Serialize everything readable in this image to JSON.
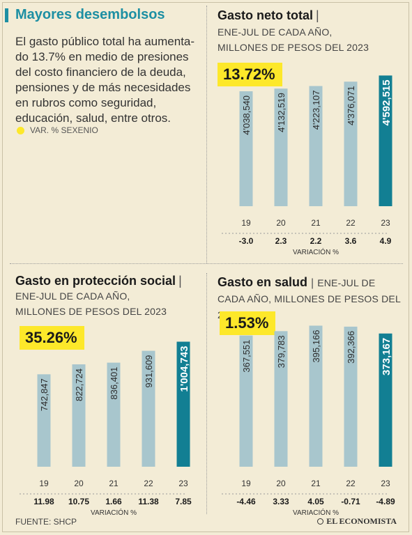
{
  "header": {
    "title": "Mayores desembolsos",
    "intro": "El gasto público total ha aumenta-do 13.7% en medio de presiones del costo financiero de la deuda, pensiones y de más necesidades en rubros como seguridad, educación, salud, entre otros.",
    "legend_label": "VAR. % SEXENIO"
  },
  "colors": {
    "regular_bar": "#a8c6cd",
    "highlight_bar": "#127f93",
    "badge": "#fde82a",
    "accent": "#1d8fa3"
  },
  "footer": {
    "source": "FUENTE: SHCP",
    "brand": "EL ECONOMISTA"
  },
  "chart_data": [
    {
      "type": "bar",
      "title": "Gasto neto total",
      "subtitle": "ENE-JUL DE CADA AÑO, MILLONES DE PESOS DEL 2023",
      "badge": "13.72%",
      "categories": [
        "19",
        "20",
        "21",
        "22",
        "23"
      ],
      "values": [
        4038540,
        4132519,
        4223107,
        4376071,
        4592515
      ],
      "value_labels": [
        "4'038,540",
        "4'132,519",
        "4'223,107",
        "4'376,071",
        "4'592,515"
      ],
      "variation": [
        "-3.0",
        "2.3",
        "2.2",
        "3.6",
        "4.9"
      ],
      "variation_label": "VARIACIÓN %",
      "highlight_index": 4,
      "ylim": [
        0,
        4700000
      ]
    },
    {
      "type": "bar",
      "title": "Gasto en protección social",
      "subtitle": "ENE-JUL DE CADA AÑO, MILLONES DE PESOS DEL 2023",
      "badge": "35.26%",
      "categories": [
        "19",
        "20",
        "21",
        "22",
        "23"
      ],
      "values": [
        742847,
        822724,
        836401,
        931609,
        1004743
      ],
      "value_labels": [
        "742,847",
        "822,724",
        "836,401",
        "931,609",
        "1'004,743"
      ],
      "variation": [
        "11.98",
        "10.75",
        "1.66",
        "11.38",
        "7.85"
      ],
      "variation_label": "VARIACIÓN %",
      "highlight_index": 4,
      "ylim": [
        0,
        1030000
      ]
    },
    {
      "type": "bar",
      "title": "Gasto en salud",
      "subtitle": "ENE-JUL DE CADA AÑO, MILLONES DE PESOS DEL 2023",
      "badge": "1.53%",
      "categories": [
        "19",
        "20",
        "21",
        "22",
        "23"
      ],
      "values": [
        367551,
        379783,
        395166,
        392366,
        373167
      ],
      "value_labels": [
        "367,551",
        "379,783",
        "395,166",
        "392,366",
        "373,167"
      ],
      "variation": [
        "-4.46",
        "3.33",
        "4.05",
        "-0.71",
        "-4.89"
      ],
      "variation_label": "VARIACIÓN %",
      "highlight_index": 4,
      "ylim": [
        0,
        400000
      ]
    }
  ]
}
